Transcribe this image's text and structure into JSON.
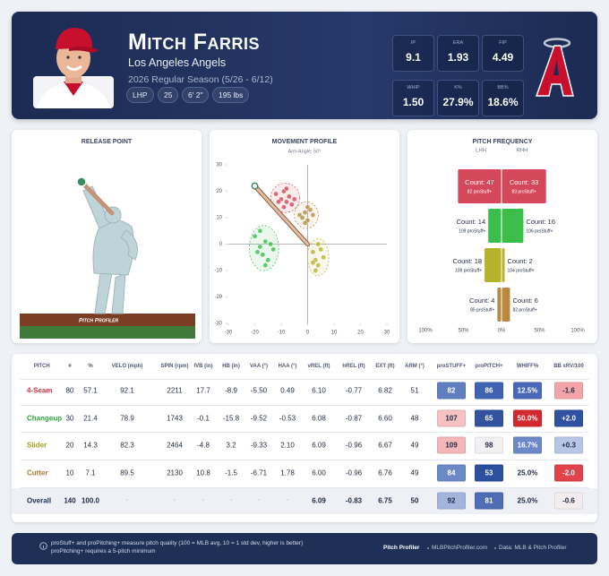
{
  "header": {
    "name": "Mitch Farris",
    "team": "Los Angeles Angels",
    "season": "2026 Regular Season (5/26 - 6/12)",
    "pills": [
      "LHP",
      "25",
      "6' 2\"",
      "195 lbs"
    ],
    "stats": [
      {
        "label": "IP",
        "value": "9.1"
      },
      {
        "label": "ERA",
        "value": "1.93"
      },
      {
        "label": "FIP",
        "value": "4.49"
      },
      {
        "label": "WHIP",
        "value": "1.50"
      },
      {
        "label": "K%",
        "value": "27.9%"
      },
      {
        "label": "BB%",
        "value": "18.6%"
      }
    ]
  },
  "release_point": {
    "title": "RELEASE POINT",
    "mound_label": "Pitch Profiler"
  },
  "movement": {
    "type": "scatter",
    "title": "MOVEMENT PROFILE",
    "subtitle": "Arm Angle: 50°",
    "xlim": [
      -30,
      30
    ],
    "ylim": [
      -30,
      30
    ],
    "xticks": [
      -30,
      -20,
      -10,
      0,
      10,
      20,
      30
    ],
    "yticks": [
      -30,
      -20,
      -10,
      0,
      10,
      20,
      30
    ],
    "series": [
      {
        "color": "#d5475a",
        "x": [
          -12,
          -10,
          -9,
          -8,
          -7,
          -6,
          -9,
          -11,
          -8,
          -5
        ],
        "y": [
          19,
          17,
          20,
          16,
          18,
          15,
          14,
          16,
          21,
          17
        ]
      },
      {
        "color": "#3bbf4a",
        "x": [
          -20,
          -18,
          -17,
          -16,
          -15,
          -14,
          -19,
          -13,
          -16,
          -18
        ],
        "y": [
          3,
          -1,
          -4,
          1,
          -6,
          0,
          -3,
          -2,
          -8,
          5
        ]
      },
      {
        "color": "#b8b22a",
        "x": [
          2,
          3,
          4,
          5,
          3,
          6,
          4,
          2
        ],
        "y": [
          -3,
          -6,
          -8,
          -2,
          -10,
          -5,
          0,
          -7
        ]
      },
      {
        "color": "#b8893e",
        "x": [
          -3,
          -1,
          0,
          1,
          -2,
          2,
          -1,
          0
        ],
        "y": [
          11,
          12,
          9,
          13,
          10,
          11,
          8,
          14
        ]
      }
    ]
  },
  "frequency": {
    "type": "bar",
    "title": "PITCH FREQUENCY",
    "colors": [
      "#d5475a",
      "#3bbf4a",
      "#b8b22a",
      "#b8893e"
    ],
    "xlim": [
      -100,
      100
    ],
    "xticks": [
      {
        "value": -100,
        "label": "100%"
      },
      {
        "value": -50,
        "label": "50%"
      },
      {
        "value": 0,
        "label": "0%"
      },
      {
        "value": 50,
        "label": "50%"
      },
      {
        "value": 100,
        "label": "100%"
      }
    ],
    "sides": [
      {
        "name": "LHH",
        "counts": [
          47,
          14,
          18,
          4
        ],
        "count_labels": [
          "Count: 47",
          "Count: 14",
          "Count: 18",
          "Count: 4"
        ],
        "stuff": [
          82,
          109,
          109,
          85
        ],
        "stuff_labels": [
          "82 proStuff+",
          "109 proStuff+",
          "109 proStuff+",
          "85 proStuff+"
        ]
      },
      {
        "name": "RHH",
        "counts": [
          33,
          16,
          2,
          6
        ],
        "count_labels": [
          "Count: 33",
          "Count: 16",
          "Count: 2",
          "Count: 6"
        ],
        "stuff": [
          83,
          106,
          104,
          82
        ],
        "stuff_labels": [
          "83 proStuff+",
          "106 proStuff+",
          "104 proStuff+",
          "82 proStuff+"
        ]
      }
    ]
  },
  "table": {
    "columns": [
      "PITCH",
      "#",
      "%",
      "VELO (mph)",
      "SPIN (rpm)",
      "IVB (in)",
      "HB (in)",
      "VAA (°)",
      "HAA (°)",
      "vREL (ft)",
      "hREL (ft)",
      "EXT (ft)",
      "ARM (°)",
      "proSTUFF+",
      "proPITCH+",
      "WHIFF%",
      "BB xRV/100"
    ],
    "name_colors": [
      "#c8374b",
      "#2ea53c",
      "#a59e1c",
      "#a67a32",
      "#1f3057"
    ],
    "rows": [
      {
        "cells": [
          "4-Seam",
          "80",
          "57.1",
          "92.1",
          "2211",
          "17.7",
          "-8.9",
          "-5.50",
          "0.49",
          "6.10",
          "-0.77",
          "6.82",
          "51",
          {
            "text": "82",
            "fill": "#5f7fc0",
            "color": "#ffffff"
          },
          {
            "text": "86",
            "fill": "#3f63b1",
            "color": "#ffffff"
          },
          {
            "text": "12.5%",
            "fill": "#4a69b6",
            "color": "#ffffff"
          },
          {
            "text": "-1.6",
            "fill": "#f2a5a8",
            "color": "#1f2a44"
          }
        ]
      },
      {
        "cells": [
          "Changeup",
          "30",
          "21.4",
          "78.9",
          "1743",
          "-0.1",
          "-15.8",
          "-9.52",
          "-0.53",
          "6.08",
          "-0.87",
          "6.60",
          "48",
          {
            "text": "107",
            "fill": "#f6c1c3",
            "color": "#1f2a44"
          },
          {
            "text": "65",
            "fill": "#3353a1",
            "color": "#ffffff"
          },
          {
            "text": "50.0%",
            "fill": "#d32a2f",
            "color": "#ffffff"
          },
          {
            "text": "+2.0",
            "fill": "#3152a0",
            "color": "#ffffff"
          }
        ]
      },
      {
        "cells": [
          "Slider",
          "20",
          "14.3",
          "82.3",
          "2464",
          "-4.8",
          "3.2",
          "-9.33",
          "2.10",
          "6.09",
          "-0.96",
          "6.67",
          "49",
          {
            "text": "109",
            "fill": "#f3b6b9",
            "color": "#1f2a44"
          },
          {
            "text": "98",
            "fill": "#f1f1f3",
            "color": "#1f2a44"
          },
          {
            "text": "16.7%",
            "fill": "#6d88c6",
            "color": "#ffffff"
          },
          {
            "text": "+0.3",
            "fill": "#b7c6e5",
            "color": "#1f2a44"
          }
        ]
      },
      {
        "cells": [
          "Cutter",
          "10",
          "7.1",
          "89.5",
          "2130",
          "10.8",
          "-1.5",
          "-6.71",
          "1.78",
          "6.00",
          "-0.96",
          "6.76",
          "49",
          {
            "text": "84",
            "fill": "#6d88c6",
            "color": "#ffffff"
          },
          {
            "text": "53",
            "fill": "#2c4f9e",
            "color": "#ffffff"
          },
          {
            "text": "25.0%",
            "fill": "none",
            "color": "#1f2a44"
          },
          {
            "text": "-2.0",
            "fill": "#e04349",
            "color": "#ffffff"
          }
        ]
      },
      {
        "cells": [
          "Overall",
          "140",
          "100.0",
          "-",
          "-",
          "-",
          "-",
          "-",
          "-",
          "6.09",
          "-0.83",
          "6.75",
          "50",
          {
            "text": "92",
            "fill": "#a3b5dd",
            "color": "#1f2a44"
          },
          {
            "text": "81",
            "fill": "#4e6db5",
            "color": "#ffffff"
          },
          {
            "text": "25.0%",
            "fill": "none",
            "color": "#1f2a44"
          },
          {
            "text": "-0.6",
            "fill": "#f4ecee",
            "color": "#1f2a44"
          }
        ]
      }
    ]
  },
  "footer": {
    "note": [
      "proStuff+ and proPitching+ measure pitch quality (100 = MLB avg, 10 = 1 std dev, higher is better)",
      "proPitching+ requires a 5-pitch minimum"
    ],
    "brand": "Pitch Profiler",
    "site": "MLBPitchProfiler.com",
    "source": "Data: MLB & Pitch Profiler"
  }
}
